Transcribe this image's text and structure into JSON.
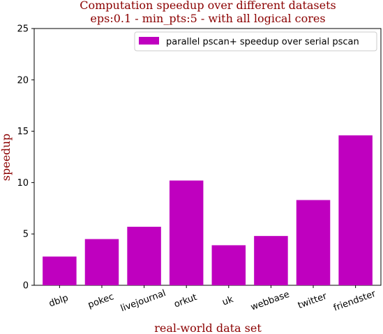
{
  "chart_data": {
    "type": "bar",
    "title": "Computation speedup over different datasets",
    "subtitle": "eps:0.1 - min_pts:5 - with all logical cores",
    "xlabel": "real-world data set",
    "ylabel": "speedup",
    "categories": [
      "dblp",
      "pokec",
      "livejournal",
      "orkut",
      "uk",
      "webbase",
      "twitter",
      "friendster"
    ],
    "series": [
      {
        "name": "parallel pscan+ speedup over serial pscan",
        "values": [
          2.8,
          4.5,
          5.7,
          10.2,
          3.9,
          4.8,
          8.3,
          14.6
        ],
        "color": "#bf00bf"
      }
    ],
    "ylim": [
      0,
      25
    ],
    "yticks": [
      0,
      5,
      10,
      15,
      20,
      25
    ],
    "grid": false,
    "legend_position": "top-right"
  }
}
